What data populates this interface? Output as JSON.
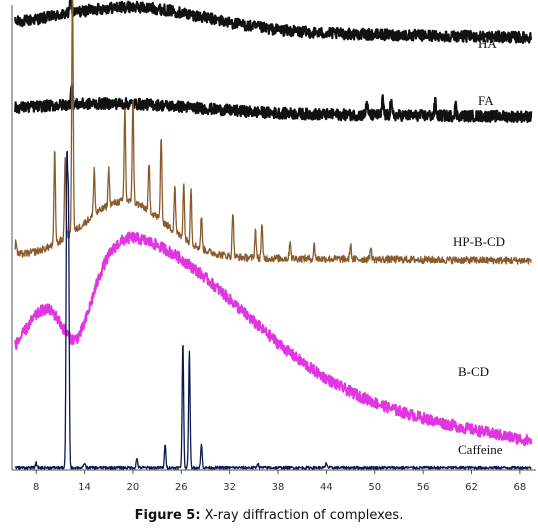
{
  "caption": {
    "prefix": "Figure 5:",
    "text": " X-ray diffraction of complexes."
  },
  "chart_data": {
    "type": "line",
    "title": "",
    "xlabel": "",
    "ylabel": "",
    "xlim": [
      5,
      70
    ],
    "grid": false,
    "x_ticks": [
      "8",
      "14",
      "20",
      "26",
      "32",
      "38",
      "44",
      "50",
      "56",
      "62",
      "68"
    ],
    "x_tick_values": [
      8,
      14,
      20,
      26,
      32,
      38,
      44,
      50,
      56,
      62,
      68
    ],
    "series": [
      {
        "name": "HA",
        "color": "#111111",
        "baseline": 0.95,
        "noise": 0.012,
        "hump": {
          "center": 20,
          "width": 9,
          "height": 0.05
        },
        "slope": -0.02,
        "peaks": [
          [
            12.3,
            0.04
          ]
        ]
      },
      {
        "name": "FA",
        "color": "#111111",
        "baseline": 0.77,
        "noise": 0.012,
        "hump": {
          "center": 18,
          "width": 10,
          "height": 0.02
        },
        "slope": -0.01,
        "peaks": [
          [
            12.4,
            0.05
          ],
          [
            49,
            0.03
          ],
          [
            51,
            0.035
          ],
          [
            52,
            0.03
          ],
          [
            57.5,
            0.03
          ],
          [
            60,
            0.025
          ]
        ]
      },
      {
        "name": "HP-B-CD",
        "color": "#8B5A2B",
        "baseline": 0.46,
        "noise": 0.008,
        "hump": {
          "center": 19,
          "width": 5,
          "height": 0.12
        },
        "slope": -0.01,
        "peaks": [
          [
            5.5,
            0.03
          ],
          [
            10.3,
            0.2
          ],
          [
            11.6,
            0.18
          ],
          [
            12.5,
            0.54
          ],
          [
            15.2,
            0.1
          ],
          [
            17.0,
            0.08
          ],
          [
            19.0,
            0.2
          ],
          [
            20.0,
            0.22
          ],
          [
            22.0,
            0.1
          ],
          [
            23.5,
            0.18
          ],
          [
            25.2,
            0.1
          ],
          [
            26.3,
            0.12
          ],
          [
            27.2,
            0.12
          ],
          [
            28.5,
            0.07
          ],
          [
            32.4,
            0.1
          ],
          [
            35.2,
            0.06
          ],
          [
            36.0,
            0.07
          ],
          [
            39.5,
            0.04
          ],
          [
            42.5,
            0.03
          ],
          [
            47.0,
            0.03
          ],
          [
            49.5,
            0.025
          ]
        ]
      },
      {
        "name": "B-CD",
        "color": "#E035E0",
        "baseline": 0.22,
        "noise": 0.012,
        "hump": {
          "center": 20,
          "width": 6,
          "height": 0.28
        },
        "hump2": {
          "center": 8.8,
          "width": 2.6,
          "height": 0.08
        },
        "tail": {
          "start": 20,
          "end": 70,
          "from": 0.22,
          "to": 0.06
        },
        "slope": 0,
        "peaks": []
      },
      {
        "name": "Caffeine",
        "color": "#0B1950",
        "baseline": 0.005,
        "noise": 0.003,
        "hump": {
          "center": 20,
          "width": 10,
          "height": 0.0
        },
        "slope": 0,
        "peaks": [
          [
            8.0,
            0.01
          ],
          [
            11.8,
            0.63
          ],
          [
            12.0,
            0.55
          ],
          [
            14.0,
            0.01
          ],
          [
            20.5,
            0.02
          ],
          [
            24.0,
            0.05
          ],
          [
            26.2,
            0.27
          ],
          [
            27.0,
            0.25
          ],
          [
            28.5,
            0.05
          ],
          [
            35.5,
            0.01
          ],
          [
            44.0,
            0.01
          ]
        ]
      }
    ]
  }
}
